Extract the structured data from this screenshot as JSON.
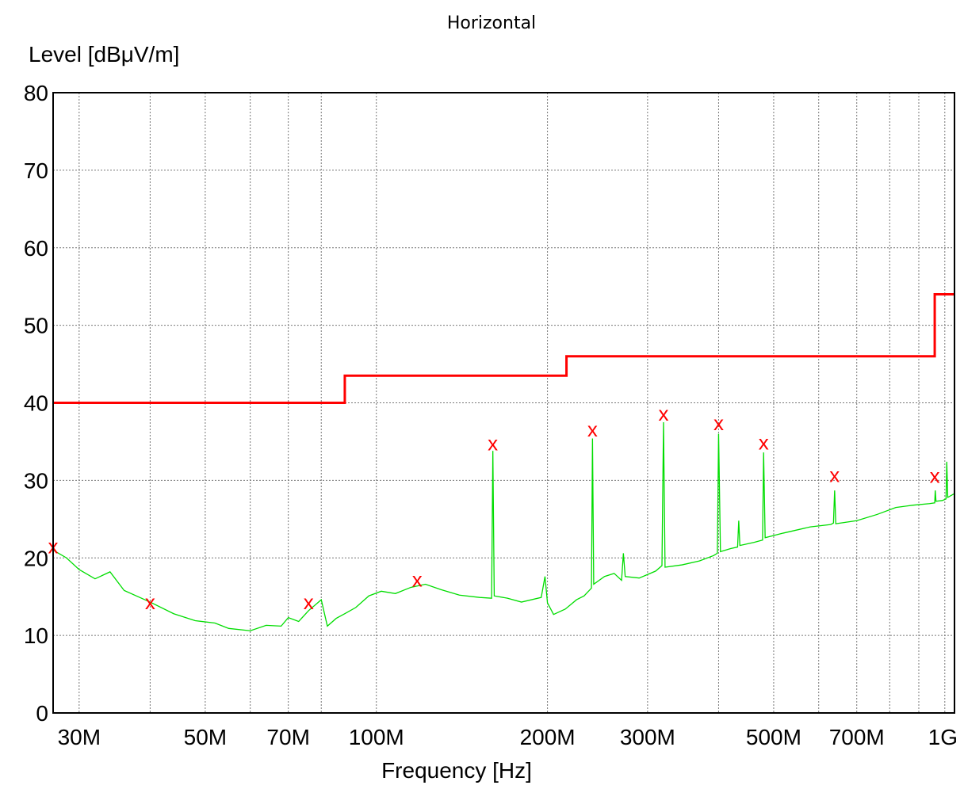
{
  "chart_data": {
    "type": "line",
    "title": "Horizontal",
    "xlabel": "Frequency [Hz]",
    "ylabel": "Level [dBμV/m]",
    "x_scale": "log",
    "xlim": [
      27000000,
      1040000000
    ],
    "ylim": [
      0,
      80
    ],
    "grid": true,
    "x_ticks": [
      {
        "value": 30000000,
        "label": "30M"
      },
      {
        "value": 50000000,
        "label": "50M"
      },
      {
        "value": 70000000,
        "label": "70M"
      },
      {
        "value": 100000000,
        "label": "100M"
      },
      {
        "value": 200000000,
        "label": "200M"
      },
      {
        "value": 300000000,
        "label": "300M"
      },
      {
        "value": 500000000,
        "label": "500M"
      },
      {
        "value": 700000000,
        "label": "700M"
      },
      {
        "value": 1000000000,
        "label": "1G"
      }
    ],
    "x_minor_grid": [
      40000000,
      60000000,
      80000000,
      400000000,
      600000000,
      800000000,
      900000000
    ],
    "y_ticks": [
      0,
      10,
      20,
      30,
      40,
      50,
      60,
      70,
      80
    ],
    "series": [
      {
        "color": "#ff0000",
        "step": true,
        "points": [
          [
            27000000,
            40
          ],
          [
            88000000,
            40
          ],
          [
            88000000,
            43.5
          ],
          [
            216000000,
            43.5
          ],
          [
            216000000,
            46
          ],
          [
            960000000,
            46
          ],
          [
            960000000,
            54
          ],
          [
            1040000000,
            54
          ]
        ]
      },
      {
        "color": "#00dd00",
        "points": [
          [
            27000000,
            21
          ],
          [
            28500000,
            20
          ],
          [
            30000000,
            18.5
          ],
          [
            32000000,
            17.3
          ],
          [
            34000000,
            18.2
          ],
          [
            36000000,
            15.8
          ],
          [
            40000000,
            14.3
          ],
          [
            44000000,
            12.8
          ],
          [
            48000000,
            11.9
          ],
          [
            52000000,
            11.6
          ],
          [
            55000000,
            10.9
          ],
          [
            60000000,
            10.6
          ],
          [
            64000000,
            11.3
          ],
          [
            68000000,
            11.2
          ],
          [
            70000000,
            12.3
          ],
          [
            73000000,
            11.8
          ],
          [
            76000000,
            13.2
          ],
          [
            80000000,
            14.6
          ],
          [
            82000000,
            11.2
          ],
          [
            85000000,
            12.2
          ],
          [
            88000000,
            12.8
          ],
          [
            92000000,
            13.6
          ],
          [
            97000000,
            15.1
          ],
          [
            102000000,
            15.7
          ],
          [
            108000000,
            15.4
          ],
          [
            115000000,
            16.2
          ],
          [
            122000000,
            16.6
          ],
          [
            130000000,
            15.9
          ],
          [
            140000000,
            15.2
          ],
          [
            152000000,
            14.9
          ],
          [
            159500000,
            14.8
          ],
          [
            160300000,
            33.8
          ],
          [
            161200000,
            15.1
          ],
          [
            170000000,
            14.8
          ],
          [
            180000000,
            14.3
          ],
          [
            195000000,
            14.9
          ],
          [
            198000000,
            17.6
          ],
          [
            200000000,
            14.2
          ],
          [
            205000000,
            12.7
          ],
          [
            215000000,
            13.4
          ],
          [
            225000000,
            14.6
          ],
          [
            232000000,
            15.1
          ],
          [
            239000000,
            16.1
          ],
          [
            240000000,
            35.4
          ],
          [
            241200000,
            16.6
          ],
          [
            252000000,
            17.6
          ],
          [
            262000000,
            18.0
          ],
          [
            270000000,
            17.1
          ],
          [
            272000000,
            20.6
          ],
          [
            274000000,
            17.6
          ],
          [
            290000000,
            17.4
          ],
          [
            310000000,
            18.3
          ],
          [
            318000000,
            19.0
          ],
          [
            320000000,
            37.5
          ],
          [
            322000000,
            18.8
          ],
          [
            345000000,
            19.1
          ],
          [
            370000000,
            19.6
          ],
          [
            392000000,
            20.3
          ],
          [
            398000000,
            20.6
          ],
          [
            400000000,
            36.0
          ],
          [
            403000000,
            20.8
          ],
          [
            420000000,
            21.2
          ],
          [
            432000000,
            21.4
          ],
          [
            434000000,
            24.8
          ],
          [
            436000000,
            21.6
          ],
          [
            462000000,
            22.0
          ],
          [
            478000000,
            22.3
          ],
          [
            480000000,
            33.6
          ],
          [
            483000000,
            22.6
          ],
          [
            520000000,
            23.2
          ],
          [
            580000000,
            24.0
          ],
          [
            630000000,
            24.3
          ],
          [
            637000000,
            24.5
          ],
          [
            640000000,
            28.7
          ],
          [
            643000000,
            24.4
          ],
          [
            700000000,
            24.8
          ],
          [
            760000000,
            25.6
          ],
          [
            820000000,
            26.5
          ],
          [
            880000000,
            26.8
          ],
          [
            940000000,
            27.0
          ],
          [
            960000000,
            27.1
          ],
          [
            962000000,
            28.7
          ],
          [
            965000000,
            27.3
          ],
          [
            990000000,
            27.4
          ],
          [
            1005000000,
            27.6
          ],
          [
            1008000000,
            32.4
          ],
          [
            1012000000,
            27.8
          ],
          [
            1040000000,
            28.3
          ]
        ]
      }
    ],
    "markers": {
      "symbol": "x",
      "color": "#ff0000",
      "points": [
        [
          27000000,
          21.5
        ],
        [
          40000000,
          14.3
        ],
        [
          76000000,
          14.3
        ],
        [
          118000000,
          17.2
        ],
        [
          160300000,
          34.8
        ],
        [
          240000000,
          36.6
        ],
        [
          320000000,
          38.6
        ],
        [
          400000000,
          37.4
        ],
        [
          480000000,
          34.9
        ],
        [
          640000000,
          30.7
        ],
        [
          960000000,
          30.6
        ]
      ]
    }
  }
}
